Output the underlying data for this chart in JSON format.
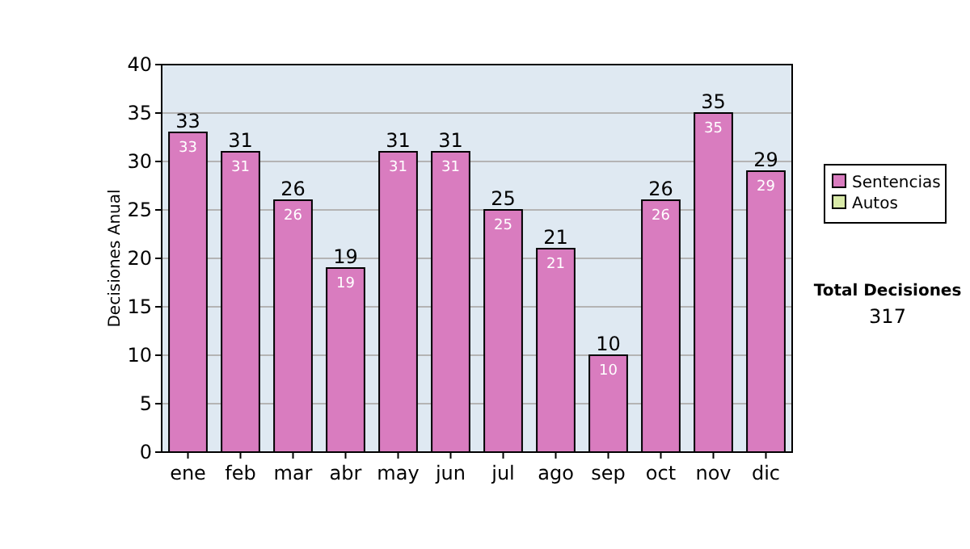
{
  "chart_data": {
    "type": "bar",
    "stacked": true,
    "ylabel": "Decisiones Anual",
    "categories": [
      "ene",
      "feb",
      "mar",
      "abr",
      "may",
      "jun",
      "jul",
      "ago",
      "sep",
      "oct",
      "nov",
      "dic"
    ],
    "series": [
      {
        "name": "Sentencias",
        "color": "#d97cbf",
        "values": [
          33,
          31,
          26,
          19,
          31,
          31,
          25,
          21,
          10,
          26,
          35,
          29
        ],
        "value_labels": [
          "33",
          "31",
          "26",
          "19",
          "31",
          "31",
          "25",
          "21",
          "10",
          "26",
          "35",
          "29"
        ]
      },
      {
        "name": "Autos",
        "color": "#d9eaa8",
        "values": [
          0,
          0,
          0,
          0,
          0,
          0,
          0,
          0,
          0,
          0,
          0,
          0
        ]
      }
    ],
    "totals": [
      "33",
      "31",
      "26",
      "19",
      "31",
      "31",
      "25",
      "21",
      "10",
      "26",
      "35",
      "29"
    ],
    "ylim": [
      0,
      40
    ],
    "yticks": [
      0,
      5,
      10,
      15,
      20,
      25,
      30,
      35,
      40
    ],
    "grid": "y",
    "legend": "right",
    "annotations": [
      "Total Decisiones",
      "317"
    ]
  }
}
